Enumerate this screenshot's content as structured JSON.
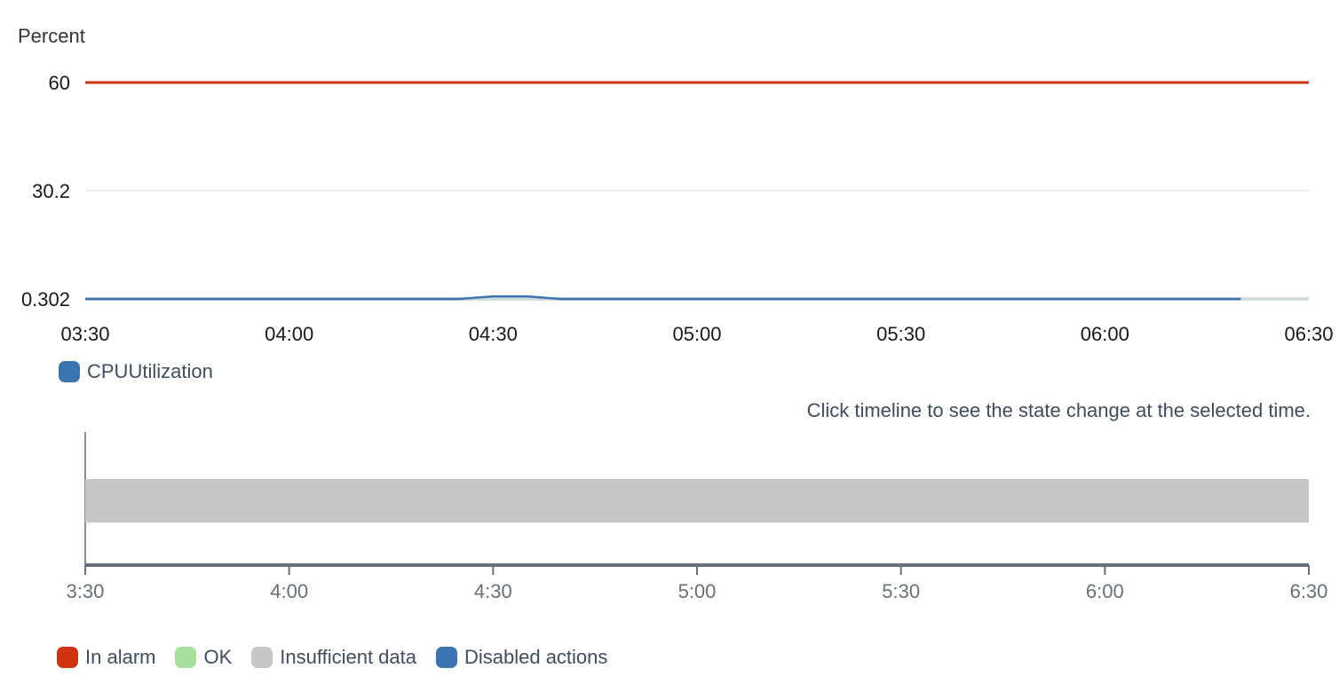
{
  "chart_data": [
    {
      "type": "line",
      "ylabel": "Percent",
      "ylim": [
        0.302,
        60
      ],
      "yticks": [
        "60",
        "30.2",
        "0.302"
      ],
      "ytick_values": [
        60,
        30.2,
        0.302
      ],
      "xticks": [
        "03:30",
        "04:00",
        "04:30",
        "05:00",
        "05:30",
        "06:00",
        "06:30"
      ],
      "xrange": [
        "03:30",
        "06:30"
      ],
      "grid": true,
      "legend_position": "bottom-left",
      "threshold": {
        "value": 60,
        "color": "#d13212"
      },
      "series": [
        {
          "name": "CPUUtilization",
          "color": "#3b74b0",
          "x": [
            "03:30",
            "04:25",
            "04:30",
            "04:35",
            "04:40",
            "06:20"
          ],
          "y": [
            0.302,
            0.302,
            1.0,
            1.0,
            0.302,
            0.302
          ]
        }
      ]
    },
    {
      "type": "bar",
      "xticks": [
        "3:30",
        "4:00",
        "4:30",
        "5:00",
        "5:30",
        "6:00",
        "6:30"
      ],
      "xrange": [
        "3:30",
        "6:30"
      ],
      "legend_position": "bottom-left",
      "segments": [
        {
          "state": "Insufficient data",
          "start": "3:30",
          "end": "6:30"
        }
      ]
    }
  ],
  "hint_text": "Click timeline to see the state change at the selected time.",
  "state_legend": [
    {
      "label": "In alarm",
      "color": "#d13212"
    },
    {
      "label": "OK",
      "color": "#a8e09d"
    },
    {
      "label": "Insufficient data",
      "color": "#c6c6c6"
    },
    {
      "label": "Disabled actions",
      "color": "#3b74b0"
    }
  ],
  "colors": {
    "grid": "#e9ebed",
    "axis": "#687078",
    "tick_text": "#16191f",
    "timeline_tick_text": "#687078",
    "baseline": "#d5dbdb"
  }
}
